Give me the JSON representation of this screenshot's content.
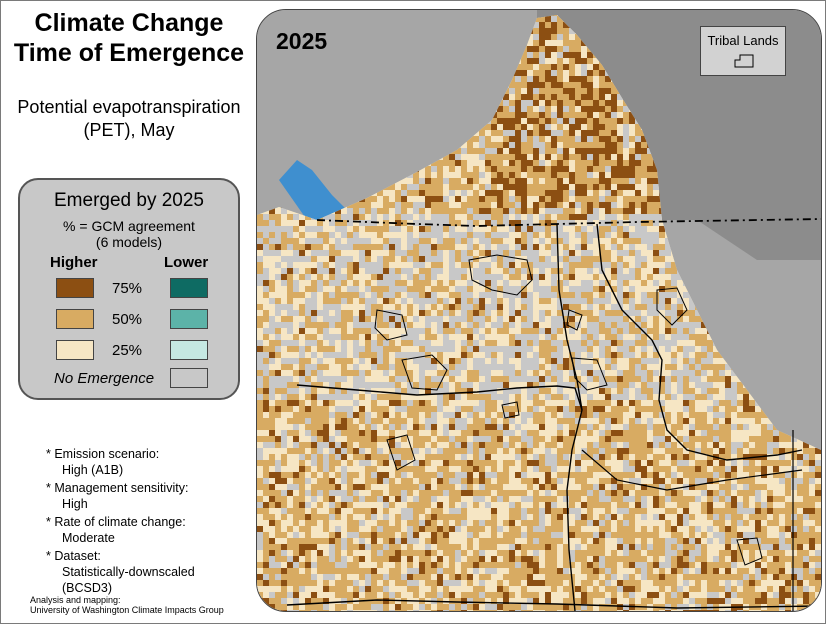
{
  "title_line1": "Climate Change",
  "title_line2": "Time of Emergence",
  "subtitle_line1": "Potential evapotranspiration",
  "subtitle_line2": "(PET), May",
  "legend": {
    "title": "Emerged by 2025",
    "subtitle_line1": "% = GCM agreement",
    "subtitle_line2": "(6 models)",
    "higher_label": "Higher",
    "lower_label": "Lower",
    "rows": [
      {
        "label": "75%",
        "higher_color": "#8c4f12",
        "lower_color": "#0e6b63"
      },
      {
        "label": "50%",
        "higher_color": "#d8ab62",
        "lower_color": "#5cb3a8"
      },
      {
        "label": "25%",
        "higher_color": "#f6e6c4",
        "lower_color": "#c5e8e2"
      }
    ],
    "no_emergence_label": "No Emergence",
    "no_emergence_color": "#c8c8c8"
  },
  "notes": [
    {
      "key": "* Emission scenario:",
      "value": "High (A1B)"
    },
    {
      "key": "* Management sensitivity:",
      "value": "High"
    },
    {
      "key": "* Rate of climate change:",
      "value": "Moderate"
    },
    {
      "key": "* Dataset:",
      "value_lines": [
        "Statistically-downscaled",
        "(BCSD3)"
      ]
    }
  ],
  "credit_line1": "Analysis and mapping:",
  "credit_line2": "University of Washington Climate Impacts Group",
  "map": {
    "year": "2025",
    "tribal_lands_label": "Tribal Lands",
    "colors": {
      "ocean": "#3f8fcf",
      "outside": "#a6a6a6",
      "border": "#000000"
    }
  }
}
